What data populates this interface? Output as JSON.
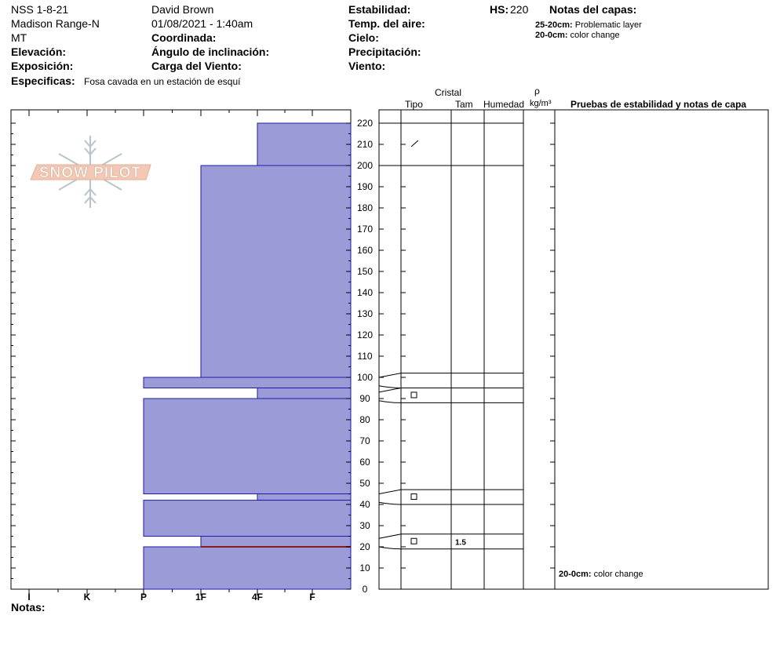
{
  "header": {
    "site": "NSS 1-8-21",
    "range": "Madison Range-N",
    "state": "MT",
    "elevation_label": "Elevación:",
    "exposure_label": "Exposición:",
    "specifics_label": "Especificas:",
    "specifics_value": "Fosa cavada en un estación de esquí",
    "observer": "David Brown",
    "datetime": "01/08/2021 - 1:40am",
    "coord_label": "Coordinada:",
    "slope_label": "Ángulo de inclinación:",
    "wind_load_label": "Carga del Viento:",
    "stability_label": "Estabilidad:",
    "air_temp_label": "Temp. del aire:",
    "sky_label": "Cielo:",
    "precip_label": "Precipitación:",
    "wind_label": "Viento:",
    "hs_label": "HS:",
    "hs_value": "220",
    "layer_notes_title": "Notas del capas:",
    "layer_notes": [
      {
        "range": "25-20cm:",
        "text": "Problematic layer"
      },
      {
        "range": "20-0cm:",
        "text": "color change"
      }
    ]
  },
  "columns": {
    "crystal": "Cristal",
    "type": "Tipo",
    "size": "Tam",
    "moisture": "Humedad",
    "rho": "ρ",
    "density_unit": "kg/m³",
    "tests": "Pruebas de estabilidad y notas de capa"
  },
  "footer": {
    "notes_label": "Notas:",
    "bottom_note_range": "20-0cm:",
    "bottom_note_text": "color change"
  },
  "logo_text": "SNOW PILOT",
  "colors": {
    "layer_fill": "#9b9bd7",
    "layer_stroke": "#1c1ca8",
    "problem_line": "#8b1a1a"
  },
  "chart_data": {
    "type": "bar",
    "hardness_scale": [
      "I",
      "K",
      "P",
      "1F",
      "4F",
      "F"
    ],
    "ylabel": "",
    "ylim": [
      0,
      220
    ],
    "y_ticks": [
      0,
      10,
      20,
      30,
      40,
      50,
      60,
      70,
      80,
      90,
      100,
      110,
      120,
      130,
      140,
      150,
      160,
      170,
      180,
      190,
      200,
      210,
      220
    ],
    "layers": [
      {
        "top": 220,
        "bottom": 200,
        "hardness": "4F"
      },
      {
        "top": 200,
        "bottom": 100,
        "hardness": "1F"
      },
      {
        "top": 100,
        "bottom": 95,
        "hardness": "P"
      },
      {
        "top": 95,
        "bottom": 90,
        "hardness": "4F"
      },
      {
        "top": 90,
        "bottom": 45,
        "hardness": "P"
      },
      {
        "top": 45,
        "bottom": 42,
        "hardness": "4F"
      },
      {
        "top": 42,
        "bottom": 25,
        "hardness": "P"
      },
      {
        "top": 25,
        "bottom": 20,
        "hardness": "1F"
      },
      {
        "top": 20,
        "bottom": 0,
        "hardness": "P"
      }
    ],
    "problem_layer_depth": 20,
    "crystal_rows": [
      {
        "top": 220,
        "bottom": 200,
        "type": "/",
        "size": ""
      },
      {
        "top": 102,
        "bottom": 95,
        "type": "",
        "size": ""
      },
      {
        "top": 95,
        "bottom": 88,
        "type": "□",
        "size": ""
      },
      {
        "top": 47,
        "bottom": 40,
        "type": "□",
        "size": ""
      },
      {
        "top": 26,
        "bottom": 19,
        "type": "□",
        "size": "1.5"
      }
    ]
  }
}
